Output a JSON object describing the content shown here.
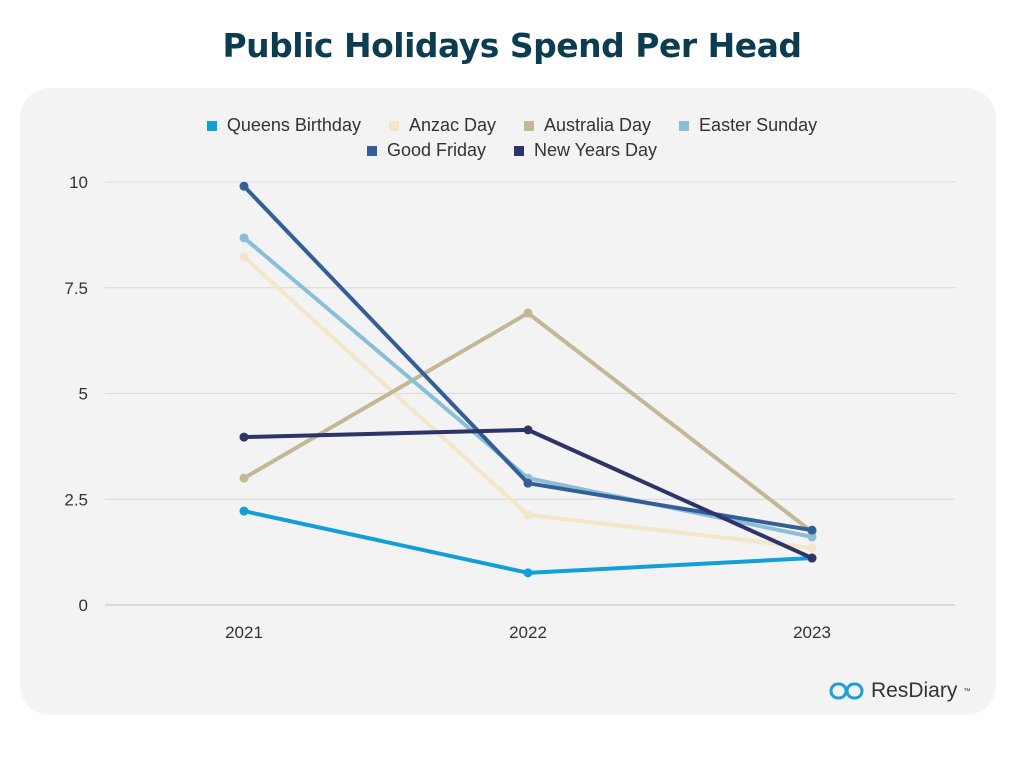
{
  "chart_data": {
    "type": "line",
    "title": "Public Holidays Spend Per Head",
    "categories": [
      "2021",
      "2022",
      "2023"
    ],
    "ylim": [
      0,
      10
    ],
    "yticks": [
      0,
      2.5,
      5,
      7.5,
      10
    ],
    "ytick_labels": [
      "0",
      "2.5",
      "5",
      "7.5",
      "10"
    ],
    "grid": true,
    "legend_position": "top",
    "series": [
      {
        "name": "Queens Birthday",
        "color": "#109fd8",
        "values": [
          2.22,
          0.76,
          1.11
        ]
      },
      {
        "name": "Anzac Day",
        "color": "#f3e6c9",
        "values": [
          8.23,
          2.13,
          1.35
        ]
      },
      {
        "name": "Australia Day",
        "color": "#c4b795",
        "values": [
          3.0,
          6.9,
          1.73
        ]
      },
      {
        "name": "Easter Sunday",
        "color": "#8abfd9",
        "values": [
          8.68,
          3.0,
          1.61
        ]
      },
      {
        "name": "Good Friday",
        "color": "#345e96",
        "values": [
          9.9,
          2.88,
          1.77
        ]
      },
      {
        "name": "New Years Day",
        "color": "#2e3368",
        "values": [
          3.97,
          4.14,
          1.11
        ]
      }
    ]
  },
  "logo": {
    "text": "ResDiary",
    "tm": "™"
  }
}
